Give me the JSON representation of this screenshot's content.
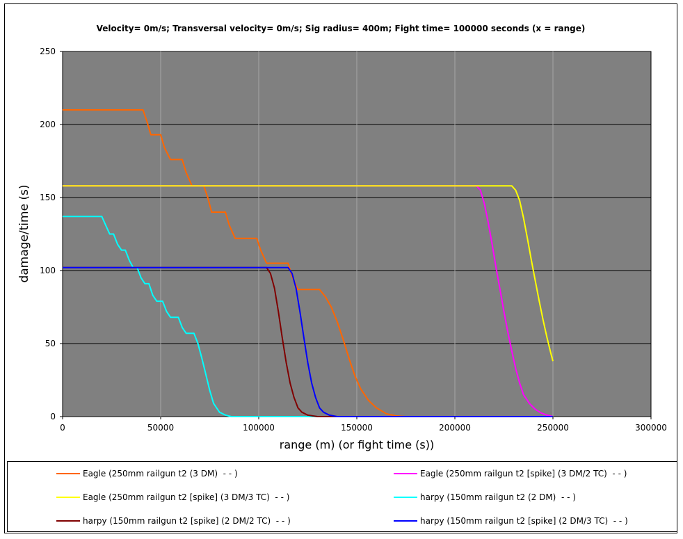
{
  "chart_data": {
    "type": "line",
    "title": "Velocity= 0m/s; Transversal velocity= 0m/s; Sig radius= 400m; Fight time= 100000 seconds (x = range)",
    "xlabel": "range (m) (or fight time (s))",
    "ylabel": "damage/time (s)",
    "xlim": [
      0,
      300000
    ],
    "ylim": [
      0,
      250
    ],
    "x_ticks": [
      "0",
      "50000",
      "100000",
      "150000",
      "200000",
      "250000",
      "300000"
    ],
    "y_ticks": [
      "0",
      "50",
      "100",
      "150",
      "200",
      "250"
    ],
    "grid": "horizontal major lines on; vertical lines light",
    "plot_background": "#808080",
    "legend_position": "bottom",
    "series": [
      {
        "name": "Eagle (250mm railgun t2 (3 DM)  - - )",
        "color": "#FF6600",
        "points": [
          [
            0,
            210
          ],
          [
            41000,
            210
          ],
          [
            43000,
            202
          ],
          [
            45000,
            193
          ],
          [
            50000,
            193
          ],
          [
            52000,
            184
          ],
          [
            55000,
            176
          ],
          [
            61000,
            176
          ],
          [
            63000,
            167
          ],
          [
            66000,
            158
          ],
          [
            72000,
            158
          ],
          [
            74000,
            150
          ],
          [
            76000,
            140
          ],
          [
            83000,
            140
          ],
          [
            85000,
            131
          ],
          [
            88000,
            122
          ],
          [
            99000,
            122
          ],
          [
            101000,
            114
          ],
          [
            104000,
            105
          ],
          [
            115000,
            105
          ],
          [
            117000,
            96
          ],
          [
            120000,
            87
          ],
          [
            131000,
            87
          ],
          [
            134000,
            82
          ],
          [
            137000,
            75
          ],
          [
            140000,
            65
          ],
          [
            143000,
            53
          ],
          [
            146000,
            40
          ],
          [
            149000,
            28
          ],
          [
            152000,
            19
          ],
          [
            156000,
            11
          ],
          [
            160000,
            6
          ],
          [
            165000,
            2
          ],
          [
            170000,
            0.5
          ],
          [
            175000,
            0
          ],
          [
            250000,
            0
          ]
        ]
      },
      {
        "name": "Eagle (250mm railgun t2 [spike] (3 DM/2 TC)  - - )",
        "color": "#FF00FF",
        "points": [
          [
            0,
            158
          ],
          [
            211000,
            158
          ],
          [
            213000,
            155
          ],
          [
            215000,
            146
          ],
          [
            217000,
            133
          ],
          [
            219000,
            118
          ],
          [
            221000,
            102
          ],
          [
            223000,
            87
          ],
          [
            225000,
            72
          ],
          [
            227000,
            58
          ],
          [
            229000,
            45
          ],
          [
            231000,
            33
          ],
          [
            233000,
            23
          ],
          [
            235000,
            15
          ],
          [
            238000,
            9
          ],
          [
            241000,
            5
          ],
          [
            244000,
            2.5
          ],
          [
            247000,
            1
          ],
          [
            250000,
            0
          ]
        ]
      },
      {
        "name": "Eagle (250mm railgun t2 [spike] (3 DM/3 TC)  - - )",
        "color": "#FFFF00",
        "points": [
          [
            0,
            158
          ],
          [
            229000,
            158
          ],
          [
            231000,
            155
          ],
          [
            233000,
            148
          ],
          [
            235000,
            136
          ],
          [
            237000,
            122
          ],
          [
            239000,
            107
          ],
          [
            241000,
            93
          ],
          [
            243000,
            79
          ],
          [
            245000,
            66
          ],
          [
            247000,
            54
          ],
          [
            249000,
            43
          ],
          [
            250000,
            38
          ]
        ]
      },
      {
        "name": "harpy (150mm railgun t2 (2 DM)  - - )",
        "color": "#00FFFF",
        "points": [
          [
            0,
            137
          ],
          [
            20000,
            137
          ],
          [
            22000,
            131
          ],
          [
            24000,
            125
          ],
          [
            26000,
            125
          ],
          [
            28000,
            118
          ],
          [
            30000,
            114
          ],
          [
            32000,
            114
          ],
          [
            34000,
            107
          ],
          [
            36000,
            102
          ],
          [
            38000,
            102
          ],
          [
            40000,
            95
          ],
          [
            42000,
            91
          ],
          [
            44000,
            91
          ],
          [
            46000,
            83
          ],
          [
            48000,
            79
          ],
          [
            51000,
            79
          ],
          [
            53000,
            72
          ],
          [
            55000,
            68
          ],
          [
            59000,
            68
          ],
          [
            61000,
            61
          ],
          [
            63000,
            57
          ],
          [
            67000,
            57
          ],
          [
            69000,
            50
          ],
          [
            71000,
            40
          ],
          [
            73000,
            29
          ],
          [
            75000,
            18
          ],
          [
            77000,
            9
          ],
          [
            80000,
            3
          ],
          [
            83000,
            1
          ],
          [
            86000,
            0
          ],
          [
            250000,
            0
          ]
        ]
      },
      {
        "name": "harpy (150mm railgun t2 [spike] (2 DM/2 TC)  - - )",
        "color": "#800000",
        "points": [
          [
            0,
            102
          ],
          [
            104000,
            102
          ],
          [
            106000,
            98
          ],
          [
            108000,
            88
          ],
          [
            110000,
            72
          ],
          [
            112000,
            54
          ],
          [
            114000,
            37
          ],
          [
            116000,
            23
          ],
          [
            118000,
            13
          ],
          [
            120000,
            6
          ],
          [
            122000,
            3
          ],
          [
            125000,
            1
          ],
          [
            130000,
            0
          ],
          [
            250000,
            0
          ]
        ]
      },
      {
        "name": "harpy (150mm railgun t2 [spike] (2 DM/3 TC)  - - )",
        "color": "#0000FF",
        "points": [
          [
            0,
            102
          ],
          [
            115000,
            102
          ],
          [
            117000,
            98
          ],
          [
            119000,
            88
          ],
          [
            121000,
            72
          ],
          [
            123000,
            54
          ],
          [
            125000,
            37
          ],
          [
            127000,
            23
          ],
          [
            129000,
            13
          ],
          [
            131000,
            6
          ],
          [
            133000,
            3
          ],
          [
            136000,
            1
          ],
          [
            140000,
            0
          ],
          [
            250000,
            0
          ]
        ]
      }
    ]
  }
}
